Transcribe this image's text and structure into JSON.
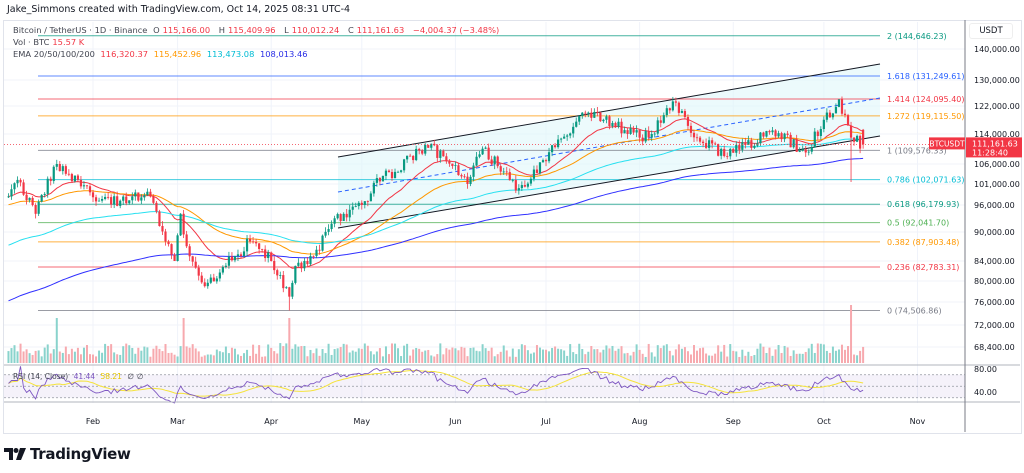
{
  "header": {
    "attribution": "Jake_Simmons created with TradingView.com, Oct 14, 2025 08:31 UTC-4"
  },
  "legend": {
    "symbol": "Bitcoin / TetherUS · 1D · Binance",
    "open_label": "O",
    "open": "115,166.00",
    "high_label": "H",
    "high": "115,409.96",
    "low_label": "L",
    "low": "110,012.24",
    "close_label": "C",
    "close": "111,161.63",
    "change": "−4,004.37 (−3.48%)",
    "vol_label": "Vol · BTC",
    "vol": "15.57 K",
    "ema_label": "EMA 20/50/100/200",
    "ema20": "116,320.37",
    "ema50": "115,452.96",
    "ema100": "113,473.08",
    "ema200": "108,013.46"
  },
  "price_axis": {
    "currency": "USDT",
    "ticks": [
      "140,000.00",
      "130,000.00",
      "122,000.00",
      "114,000.00",
      "106,000.00",
      "101,000.00",
      "96,000.00",
      "90,000.00",
      "84,000.00",
      "80,000.00",
      "76,000.00",
      "72,000.00",
      "68,400.00"
    ]
  },
  "last_price": {
    "symbol": "BTCUSDT",
    "price": "111,161.63",
    "countdown": "11:28:40"
  },
  "rsi": {
    "label": "RSI (14, Close)",
    "value": "41.44",
    "ma": "58.21",
    "extra1": "∅",
    "extra2": "∅",
    "ticks": [
      "80.00",
      "40.00"
    ]
  },
  "time_axis": [
    "Feb",
    "Mar",
    "Apr",
    "May",
    "Jun",
    "Jul",
    "Aug",
    "Sep",
    "Oct",
    "Nov"
  ],
  "brand": "TradingView",
  "colors": {
    "up": "#089981",
    "down": "#f23645",
    "ema20": "#f23645",
    "ema50": "#ff9800",
    "ema100": "#26e0f0",
    "ema200": "#3030ff",
    "rsi": "#7e57c2",
    "rsi_ma": "#f5e33a"
  },
  "chart_data": {
    "type": "candlestick",
    "title": "Bitcoin / TetherUS · 1D · Binance",
    "y_scale": "log",
    "ylim": [
      68400,
      146000
    ],
    "xlim": [
      "2025-01-04",
      "2025-11-10"
    ],
    "close_path": [
      [
        "2025-01-04",
        98000
      ],
      [
        "2025-01-07",
        102000
      ],
      [
        "2025-01-13",
        94000
      ],
      [
        "2025-01-20",
        106000
      ],
      [
        "2025-01-27",
        102000
      ],
      [
        "2025-02-03",
        97000
      ],
      [
        "2025-02-10",
        97000
      ],
      [
        "2025-02-20",
        98000
      ],
      [
        "2025-02-25",
        88000
      ],
      [
        "2025-02-28",
        84000
      ],
      [
        "2025-03-02",
        94000
      ],
      [
        "2025-03-04",
        87000
      ],
      [
        "2025-03-10",
        79000
      ],
      [
        "2025-03-20",
        85000
      ],
      [
        "2025-03-25",
        88000
      ],
      [
        "2025-04-01",
        84000
      ],
      [
        "2025-04-07",
        77000
      ],
      [
        "2025-04-09",
        83000
      ],
      [
        "2025-04-15",
        85000
      ],
      [
        "2025-04-22",
        93000
      ],
      [
        "2025-05-01",
        96000
      ],
      [
        "2025-05-08",
        103000
      ],
      [
        "2025-05-12",
        104000
      ],
      [
        "2025-05-22",
        111000
      ],
      [
        "2025-05-28",
        108000
      ],
      [
        "2025-06-05",
        101000
      ],
      [
        "2025-06-10",
        110000
      ],
      [
        "2025-06-22",
        100000
      ],
      [
        "2025-06-30",
        107000
      ],
      [
        "2025-07-10",
        116000
      ],
      [
        "2025-07-14",
        120000
      ],
      [
        "2025-07-20",
        118000
      ],
      [
        "2025-08-01",
        113000
      ],
      [
        "2025-08-05",
        114000
      ],
      [
        "2025-08-13",
        123000
      ],
      [
        "2025-08-20",
        113000
      ],
      [
        "2025-08-30",
        108000
      ],
      [
        "2025-09-05",
        111000
      ],
      [
        "2025-09-14",
        115000
      ],
      [
        "2025-09-25",
        109000
      ],
      [
        "2025-10-01",
        118000
      ],
      [
        "2025-10-06",
        124000
      ],
      [
        "2025-10-10",
        113000
      ],
      [
        "2025-10-14",
        111161.63
      ]
    ],
    "fib_levels": [
      {
        "label": "2 (144,646.23)",
        "level": 2,
        "price": 144646.23,
        "color": "#089981"
      },
      {
        "label": "1.618 (131,249.61)",
        "level": 1.618,
        "price": 131249.61,
        "color": "#2962ff"
      },
      {
        "label": "1.414 (124,095.40)",
        "level": 1.414,
        "price": 124095.4,
        "color": "#f23645"
      },
      {
        "label": "1.272 (119,115.50)",
        "level": 1.272,
        "price": 119115.5,
        "color": "#ff9800"
      },
      {
        "label": "1 (109,576.33)",
        "level": 1,
        "price": 109576.33,
        "color": "#787b86"
      },
      {
        "label": "0.786 (102,071.63)",
        "level": 0.786,
        "price": 102071.63,
        "color": "#00bcd4"
      },
      {
        "label": "0.618 (96,179.93)",
        "level": 0.618,
        "price": 96179.93,
        "color": "#089981"
      },
      {
        "label": "0.5 (92,041.70)",
        "level": 0.5,
        "price": 92041.7,
        "color": "#4caf50"
      },
      {
        "label": "0.382 (87,903.48)",
        "level": 0.382,
        "price": 87903.48,
        "color": "#ff9800"
      },
      {
        "label": "0.236 (82,783.31)",
        "level": 0.236,
        "price": 82783.31,
        "color": "#f23645"
      },
      {
        "label": "0 (74,506.86)",
        "level": 0,
        "price": 74506.86,
        "color": "#787b86"
      }
    ],
    "channel": {
      "start": "2025-04-22",
      "end": "2025-10-22"
    }
  }
}
